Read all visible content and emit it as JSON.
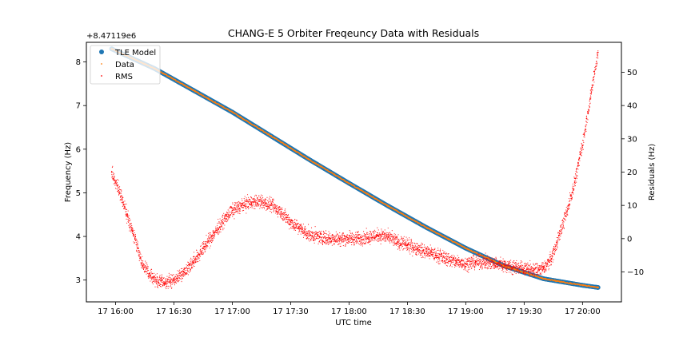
{
  "chart_data": {
    "type": "scatter",
    "title": "CHANG-E 5 Orbiter Freqeuncy Data with Residuals",
    "xlabel": "UTC time",
    "ylabel": "Frequency (Hz)",
    "y2label": "Residuals (Hz)",
    "offset_label": "+8.47119e6",
    "x_tick_labels": [
      "17 16:00",
      "17 16:30",
      "17 17:00",
      "17 17:30",
      "17 18:00",
      "17 18:30",
      "17 19:00",
      "17 19:30",
      "17 20:00"
    ],
    "x_tick_minutes": [
      960,
      990,
      1020,
      1050,
      1080,
      1110,
      1140,
      1170,
      1200
    ],
    "xlim": [
      945,
      1220
    ],
    "ylim": [
      2.5,
      8.45
    ],
    "y_ticks": [
      3,
      4,
      5,
      6,
      7,
      8
    ],
    "y2lim": [
      -19,
      59
    ],
    "y2_ticks": [
      -10,
      0,
      10,
      20,
      30,
      40,
      50
    ],
    "legend": {
      "position": "upper-left",
      "entries": [
        {
          "label": "TLE Model",
          "marker": "circle",
          "color": "#1f77b4"
        },
        {
          "label": "Data",
          "marker": "dot",
          "color": "#ff7f0e"
        },
        {
          "label": "RMS",
          "marker": "dot",
          "color": "#ff0000"
        }
      ]
    },
    "series": [
      {
        "name": "TLE Model",
        "axis": "left",
        "x_minutes": [
          958,
          980,
          1000,
          1020,
          1040,
          1060,
          1080,
          1100,
          1120,
          1140,
          1160,
          1180,
          1200,
          1208
        ],
        "values": [
          8.3,
          7.85,
          7.35,
          6.85,
          6.3,
          5.75,
          5.22,
          4.7,
          4.2,
          3.73,
          3.32,
          3.03,
          2.88,
          2.83
        ]
      },
      {
        "name": "Data",
        "axis": "left",
        "x_minutes": [
          958,
          980,
          1000,
          1020,
          1040,
          1060,
          1080,
          1100,
          1120,
          1140,
          1160,
          1180,
          1200,
          1208
        ],
        "values": [
          8.3,
          7.85,
          7.35,
          6.85,
          6.3,
          5.75,
          5.22,
          4.7,
          4.2,
          3.73,
          3.32,
          3.03,
          2.88,
          2.83
        ]
      },
      {
        "name": "RMS",
        "axis": "right",
        "x_minutes": [
          958,
          962,
          966,
          970,
          974,
          978,
          982,
          986,
          990,
          995,
          1000,
          1005,
          1010,
          1015,
          1020,
          1025,
          1030,
          1035,
          1040,
          1045,
          1050,
          1055,
          1060,
          1065,
          1070,
          1075,
          1080,
          1085,
          1090,
          1095,
          1100,
          1105,
          1110,
          1115,
          1120,
          1125,
          1130,
          1135,
          1140,
          1145,
          1150,
          1155,
          1160,
          1165,
          1170,
          1175,
          1180,
          1184,
          1188,
          1192,
          1196,
          1200,
          1204,
          1208
        ],
        "values": [
          20,
          14,
          7,
          0,
          -8,
          -11,
          -13,
          -13,
          -12.5,
          -10,
          -7,
          -3,
          1,
          5,
          8.5,
          10,
          11,
          11,
          10,
          8,
          5,
          3,
          1,
          0.5,
          0,
          0,
          0,
          0,
          0.5,
          1,
          0.5,
          -1,
          -2,
          -3,
          -4,
          -5,
          -6,
          -7,
          -7.5,
          -7,
          -7,
          -7.5,
          -8,
          -8.5,
          -9,
          -9.5,
          -9,
          -6,
          1,
          8,
          17,
          28,
          42,
          56
        ]
      }
    ]
  }
}
